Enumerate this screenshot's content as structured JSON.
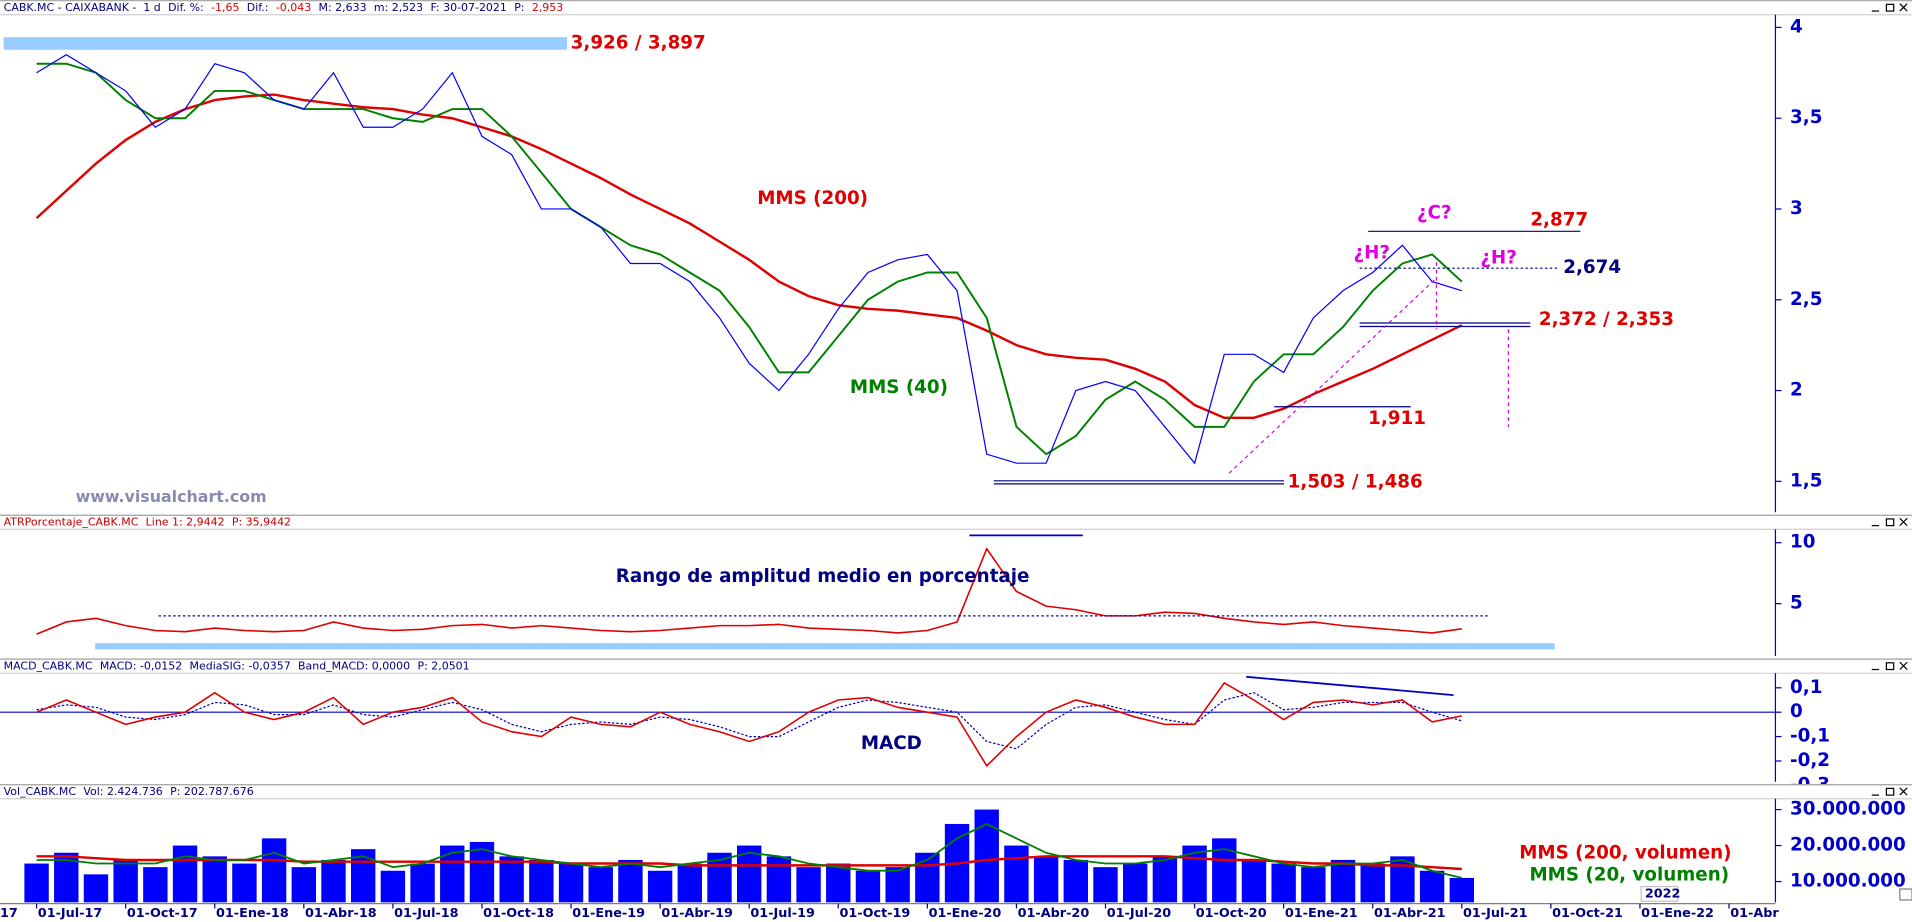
{
  "x_axis": {
    "categories": [
      "01-Jul-17",
      null,
      null,
      "01-Oct-17",
      null,
      null,
      "01-Ene-18",
      null,
      null,
      "01-Abr-18",
      null,
      null,
      "01-Jul-18",
      null,
      null,
      "01-Oct-18",
      null,
      null,
      "01-Ene-19",
      null,
      null,
      "01-Abr-19",
      null,
      null,
      "01-Jul-19",
      null,
      null,
      "01-Oct-19",
      null,
      null,
      "01-Ene-20",
      null,
      null,
      "01-Abr-20",
      null,
      null,
      "01-Jul-20",
      null,
      null,
      "01-Oct-20",
      null,
      null,
      "01-Ene-21",
      null,
      null,
      "01-Abr-21",
      null,
      null,
      "01-Jul-21",
      null,
      null,
      "01-Oct-21",
      null,
      null,
      "01-Ene-22",
      null,
      null,
      "01-Abr"
    ],
    "edge_label": "17",
    "year_label": "2022"
  },
  "chart_data": [
    {
      "type": "line",
      "header": [
        {
          "text": "CABK.MC - CAIXABANK -  1 d",
          "color": "#000080"
        },
        {
          "text": "Dif. %:",
          "color": "#000080"
        },
        {
          "text": "-1,65",
          "color": "#e00000"
        },
        {
          "text": "Dif.:",
          "color": "#000080"
        },
        {
          "text": "-0,043",
          "color": "#e00000"
        },
        {
          "text": "M: 2,633",
          "color": "#000080"
        },
        {
          "text": "m: 2,523",
          "color": "#000080"
        },
        {
          "text": "F: 30-07-2021",
          "color": "#000080"
        },
        {
          "text": "P:",
          "color": "#000080"
        },
        {
          "text": "2,953",
          "color": "#e00000"
        }
      ],
      "ylim": [
        1.33,
        4.07
      ],
      "yticks": [
        {
          "value": 1.5,
          "label": "1,5"
        },
        2,
        {
          "value": 2.5,
          "label": "2,5"
        },
        3,
        {
          "value": 3.5,
          "label": "3,5"
        },
        4
      ],
      "series": [
        {
          "color": "#0000ff",
          "values": [
            3.75,
            3.85,
            3.75,
            3.65,
            3.45,
            3.55,
            3.8,
            3.75,
            3.6,
            3.55,
            3.75,
            3.45,
            3.45,
            3.55,
            3.75,
            3.4,
            3.3,
            3.0,
            3.0,
            2.9,
            2.7,
            2.7,
            2.6,
            2.4,
            2.15,
            2.0,
            2.2,
            2.45,
            2.65,
            2.72,
            2.75,
            2.55,
            1.65,
            1.6,
            1.6,
            2.0,
            2.05,
            2.0,
            1.8,
            1.6,
            2.2,
            2.2,
            2.1,
            2.4,
            2.55,
            2.65,
            2.8,
            2.6,
            2.55,
            null,
            null,
            null,
            null,
            null,
            null,
            null,
            null,
            null
          ]
        },
        {
          "name": "MMS (40)",
          "color": "#008000",
          "values": [
            3.8,
            3.8,
            3.75,
            3.6,
            3.5,
            3.5,
            3.65,
            3.65,
            3.6,
            3.55,
            3.55,
            3.55,
            3.5,
            3.48,
            3.55,
            3.55,
            3.4,
            3.2,
            3.0,
            2.9,
            2.8,
            2.75,
            2.65,
            2.55,
            2.35,
            2.1,
            2.1,
            2.3,
            2.5,
            2.6,
            2.65,
            2.65,
            2.4,
            1.8,
            1.65,
            1.75,
            1.95,
            2.05,
            1.95,
            1.8,
            1.8,
            2.05,
            2.2,
            2.2,
            2.35,
            2.55,
            2.7,
            2.75,
            2.6,
            null,
            null,
            null,
            null,
            null,
            null,
            null,
            null,
            null
          ]
        },
        {
          "name": "MMS (200)",
          "color": "#e00000",
          "values": [
            2.95,
            3.1,
            3.25,
            3.38,
            3.48,
            3.55,
            3.6,
            3.62,
            3.63,
            3.6,
            3.58,
            3.56,
            3.55,
            3.52,
            3.5,
            3.45,
            3.4,
            3.33,
            3.25,
            3.17,
            3.08,
            3.0,
            2.92,
            2.82,
            2.72,
            2.6,
            2.52,
            2.47,
            2.45,
            2.44,
            2.42,
            2.4,
            2.33,
            2.25,
            2.2,
            2.18,
            2.17,
            2.12,
            2.05,
            1.92,
            1.85,
            1.85,
            1.9,
            1.98,
            2.05,
            2.12,
            2.2,
            2.28,
            2.36,
            null,
            null,
            null,
            null,
            null,
            null,
            null,
            null,
            null
          ]
        }
      ],
      "levels": [
        {
          "label": "3,926 / 3,897",
          "values": [
            3.926,
            3.897
          ],
          "color": "#e00000",
          "line_color": "#99ccff"
        },
        {
          "label": "2,877",
          "values": [
            2.877
          ],
          "color": "#e00000",
          "line_color": "#000080"
        },
        {
          "label": "2,674",
          "values": [
            2.674
          ],
          "color": "#000080",
          "line_color": "#000080"
        },
        {
          "label": "2,372 / 2,353",
          "values": [
            2.372,
            2.353
          ],
          "color": "#e00000",
          "line_color": "#000080"
        },
        {
          "label": "1,911",
          "values": [
            1.911
          ],
          "color": "#e00000",
          "line_color": "#000080"
        },
        {
          "label": "1,503 / 1,486",
          "values": [
            1.503,
            1.486
          ],
          "color": "#e00000",
          "line_color": "#000080"
        }
      ],
      "annotations": [
        {
          "text": "¿H?",
          "color": "#e000e0"
        },
        {
          "text": "¿C?",
          "color": "#e000e0"
        },
        {
          "text": "¿H?",
          "color": "#e000e0"
        }
      ],
      "watermark": "www.visualchart.com"
    },
    {
      "type": "line",
      "header": [
        {
          "text": "ATRPorcentaje_CABK.MC",
          "color": "#c00000"
        },
        {
          "text": "Line 1: 2,9442",
          "color": "#c00000"
        },
        {
          "text": "P: 35,9442",
          "color": "#c00000"
        }
      ],
      "ylim": [
        0.7,
        11.1
      ],
      "yticks": [
        5,
        10
      ],
      "series": [
        {
          "color": "#e00000",
          "values": [
            2.5,
            3.5,
            3.8,
            3.2,
            2.8,
            2.7,
            3.0,
            2.8,
            2.7,
            2.8,
            3.5,
            3.0,
            2.8,
            2.9,
            3.2,
            3.3,
            3.0,
            3.2,
            3.0,
            2.8,
            2.7,
            2.8,
            3.0,
            3.2,
            3.2,
            3.3,
            3.0,
            2.9,
            2.8,
            2.6,
            2.8,
            3.5,
            9.5,
            6.0,
            4.8,
            4.5,
            4.0,
            4.0,
            4.3,
            4.2,
            3.8,
            3.5,
            3.3,
            3.5,
            3.2,
            3.0,
            2.8,
            2.6,
            2.9442,
            null,
            null,
            null,
            null,
            null,
            null,
            null,
            null,
            null
          ]
        }
      ],
      "reference_lines": [
        4,
        10.6,
        1.5
      ],
      "annotation": "Rango de amplitud medio en porcentaje"
    },
    {
      "type": "line",
      "header": [
        {
          "text": "MACD_CABK.MC",
          "color": "#000080"
        },
        {
          "text": "MACD: -0,0152",
          "color": "#000080"
        },
        {
          "text": "MediaSIG: -0,0357",
          "color": "#000080"
        },
        {
          "text": "Band_MACD: 0,0000",
          "color": "#000080"
        },
        {
          "text": "P: 2,0501",
          "color": "#000080"
        }
      ],
      "ylim": [
        -0.3,
        0.16
      ],
      "yticks": [
        {
          "value": 0.1,
          "label": "0,1"
        },
        0,
        {
          "value": -0.1,
          "label": "-0,1"
        },
        {
          "value": -0.2,
          "label": "-0,2"
        },
        {
          "value": -0.3,
          "label": "-0,3"
        }
      ],
      "series": [
        {
          "color": "#e00000",
          "values": [
            0.0,
            0.05,
            0.0,
            -0.05,
            -0.02,
            0.0,
            0.08,
            0.0,
            -0.03,
            0.0,
            0.06,
            -0.05,
            0.0,
            0.02,
            0.06,
            -0.04,
            -0.08,
            -0.1,
            -0.02,
            -0.05,
            -0.06,
            0.0,
            -0.05,
            -0.08,
            -0.12,
            -0.08,
            0.0,
            0.05,
            0.06,
            0.02,
            0.0,
            -0.02,
            -0.22,
            -0.1,
            0.0,
            0.05,
            0.02,
            -0.02,
            -0.05,
            -0.05,
            0.12,
            0.05,
            -0.03,
            0.04,
            0.05,
            0.03,
            0.05,
            -0.04,
            -0.0152,
            null,
            null,
            null,
            null,
            null,
            null,
            null,
            null,
            null
          ]
        },
        {
          "color": "#0000c0",
          "values": [
            0.01,
            0.03,
            0.02,
            -0.02,
            -0.03,
            -0.01,
            0.04,
            0.03,
            -0.01,
            -0.01,
            0.03,
            -0.01,
            -0.02,
            0.01,
            0.04,
            0.01,
            -0.05,
            -0.08,
            -0.05,
            -0.04,
            -0.05,
            -0.02,
            -0.03,
            -0.06,
            -0.1,
            -0.1,
            -0.04,
            0.02,
            0.05,
            0.04,
            0.02,
            0.0,
            -0.12,
            -0.15,
            -0.05,
            0.02,
            0.03,
            0.0,
            -0.03,
            -0.05,
            0.05,
            0.08,
            0.01,
            0.02,
            0.04,
            0.04,
            0.04,
            0.0,
            -0.0357,
            null,
            null,
            null,
            null,
            null,
            null,
            null,
            null,
            null
          ]
        }
      ],
      "annotation": "MACD"
    },
    {
      "type": "bar",
      "header": [
        {
          "text": "Vol_CABK.MC",
          "color": "#000080"
        },
        {
          "text": "Vol: 2.424.736",
          "color": "#000080"
        },
        {
          "text": "P: 202.787.676",
          "color": "#000080"
        }
      ],
      "ylim": [
        4200000,
        33000000
      ],
      "yticks": [
        {
          "value": 30000000,
          "label": "30.000.000"
        },
        {
          "value": 20000000,
          "label": "20.000.000"
        },
        {
          "value": 10000000,
          "label": "10.000.000"
        }
      ],
      "color": "#0000ff",
      "values": [
        15000000,
        18000000,
        12000000,
        16000000,
        14000000,
        20000000,
        17000000,
        15000000,
        22000000,
        14000000,
        16000000,
        19000000,
        13000000,
        15000000,
        20000000,
        21000000,
        17000000,
        16000000,
        15000000,
        14000000,
        16000000,
        13000000,
        15000000,
        18000000,
        20000000,
        17000000,
        14000000,
        15000000,
        13000000,
        14000000,
        18000000,
        26000000,
        30000000,
        20000000,
        17000000,
        16000000,
        14000000,
        15000000,
        17000000,
        20000000,
        22000000,
        16000000,
        15000000,
        14000000,
        16000000,
        15000000,
        17000000,
        13000000,
        11000000,
        null,
        null,
        null,
        null,
        null,
        null,
        null,
        null,
        null
      ],
      "series": [
        {
          "name": "MMS (200, volumen)",
          "color": "#e00000",
          "values": [
            17000000,
            17000000,
            16500000,
            16000000,
            16000000,
            16000000,
            16000000,
            16000000,
            16000000,
            15500000,
            15500000,
            15500000,
            15500000,
            15500000,
            15500000,
            15500000,
            15500000,
            15500000,
            15000000,
            15000000,
            15000000,
            15000000,
            14500000,
            14500000,
            14500000,
            14500000,
            14500000,
            14500000,
            14500000,
            14500000,
            14500000,
            15000000,
            16000000,
            16500000,
            17000000,
            17000000,
            17000000,
            17000000,
            17000000,
            16500000,
            16000000,
            16000000,
            15500000,
            15000000,
            15000000,
            14500000,
            14500000,
            14000000,
            13500000,
            null,
            null,
            null,
            null,
            null,
            null,
            null,
            null,
            null
          ]
        },
        {
          "name": "MMS (20, volumen)",
          "color": "#008000",
          "values": [
            16000000,
            16000000,
            15000000,
            15000000,
            15000000,
            17000000,
            16000000,
            16000000,
            18000000,
            15000000,
            16000000,
            17000000,
            14000000,
            15000000,
            18000000,
            19000000,
            17000000,
            16000000,
            15000000,
            14000000,
            15000000,
            14000000,
            15000000,
            16000000,
            18000000,
            17000000,
            15000000,
            14000000,
            13000000,
            13000000,
            16000000,
            22000000,
            26000000,
            22000000,
            18000000,
            16000000,
            15000000,
            15000000,
            16000000,
            18000000,
            19000000,
            17000000,
            15000000,
            14000000,
            15000000,
            15000000,
            16000000,
            13000000,
            11000000,
            null,
            null,
            null,
            null,
            null,
            null,
            null,
            null,
            null
          ]
        }
      ]
    }
  ]
}
